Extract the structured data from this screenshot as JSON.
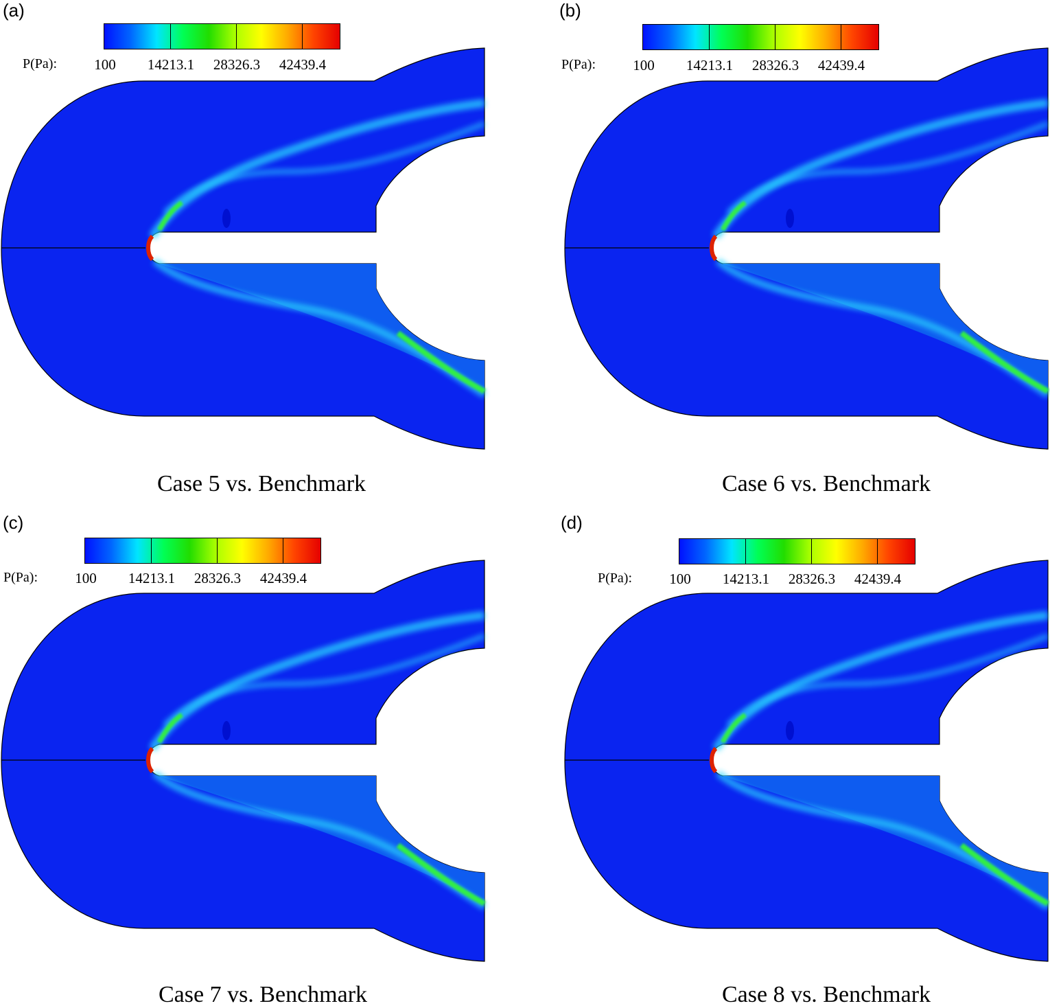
{
  "colorbar": {
    "title": "P(Pa):",
    "ticks": [
      "100",
      "14213.1",
      "28326.3",
      "42439.4"
    ],
    "gradient": [
      "#0011ff",
      "#0066ff",
      "#00e5ff",
      "#00ff55",
      "#22dd00",
      "#aaff00",
      "#ffff00",
      "#ffaa00",
      "#ff4400",
      "#e50000"
    ]
  },
  "colors": {
    "field_base": "#0a24f0",
    "field_lower_wake": "#0e5cf0",
    "shock_light": "#2bd9ff",
    "shock_green": "#33ee44",
    "stagnation_red": "#dd2200"
  },
  "panels": [
    {
      "label": "(a)",
      "caption": "Case 5 vs. Benchmark"
    },
    {
      "label": "(b)",
      "caption": "Case 6 vs. Benchmark"
    },
    {
      "label": "(c)",
      "caption": "Case 7 vs. Benchmark"
    },
    {
      "label": "(d)",
      "caption": "Case 8 vs. Benchmark"
    }
  ]
}
